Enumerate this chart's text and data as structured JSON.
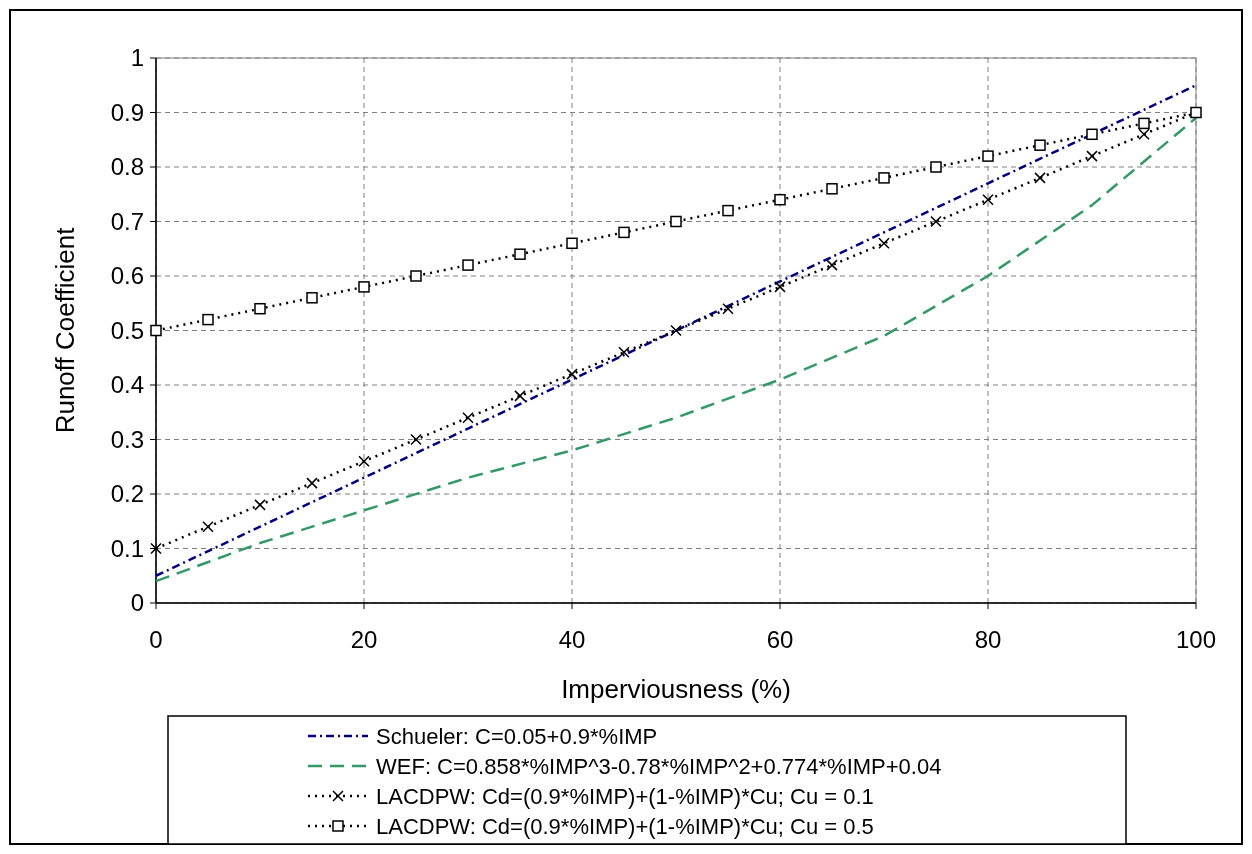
{
  "chart_data": {
    "type": "line",
    "xlabel": "Imperviousness (%)",
    "ylabel": "Runoff Coefficient",
    "xlim": [
      0,
      100
    ],
    "xticks": [
      0,
      20,
      40,
      60,
      80,
      100
    ],
    "ylim": [
      0,
      1
    ],
    "yticks": [
      0,
      0.1,
      0.2,
      0.3,
      0.4,
      0.5,
      0.6,
      0.7,
      0.8,
      0.9,
      1
    ],
    "grid": true,
    "legend": "bottom",
    "series": [
      {
        "name": "Schueler: C=0.05+0.9*%IMP",
        "color": "#000080",
        "line_style": "dashdot",
        "marker": "none",
        "x": [
          0,
          10,
          20,
          30,
          40,
          50,
          60,
          70,
          80,
          90,
          100
        ],
        "values": [
          0.05,
          0.14,
          0.23,
          0.32,
          0.41,
          0.5,
          0.59,
          0.68,
          0.77,
          0.86,
          0.95
        ]
      },
      {
        "name": "WEF: C=0.858*%IMP^3-0.78*%IMP^2+0.774*%IMP+0.04",
        "color": "#339966",
        "line_style": "dashed",
        "marker": "none",
        "x": [
          0,
          10,
          20,
          30,
          40,
          50,
          60,
          70,
          80,
          90,
          100
        ],
        "values": [
          0.04,
          0.11,
          0.17,
          0.23,
          0.28,
          0.34,
          0.41,
          0.49,
          0.6,
          0.73,
          0.89
        ]
      },
      {
        "name": "LACDPW:  Cd=(0.9*%IMP)+(1-%IMP)*Cu; Cu = 0.1",
        "color": "#000000",
        "line_style": "dotted",
        "marker": "cross",
        "x": [
          0,
          5,
          10,
          15,
          20,
          25,
          30,
          35,
          40,
          45,
          50,
          55,
          60,
          65,
          70,
          75,
          80,
          85,
          90,
          95,
          100
        ],
        "values": [
          0.1,
          0.14,
          0.18,
          0.22,
          0.26,
          0.3,
          0.34,
          0.38,
          0.42,
          0.46,
          0.5,
          0.54,
          0.58,
          0.62,
          0.66,
          0.7,
          0.74,
          0.78,
          0.82,
          0.86,
          0.9
        ]
      },
      {
        "name": "LACDPW:  Cd=(0.9*%IMP)+(1-%IMP)*Cu; Cu = 0.5",
        "color": "#000000",
        "line_style": "dotted",
        "marker": "square",
        "x": [
          0,
          5,
          10,
          15,
          20,
          25,
          30,
          35,
          40,
          45,
          50,
          55,
          60,
          65,
          70,
          75,
          80,
          85,
          90,
          95,
          100
        ],
        "values": [
          0.5,
          0.52,
          0.54,
          0.56,
          0.58,
          0.6,
          0.62,
          0.64,
          0.66,
          0.68,
          0.7,
          0.72,
          0.74,
          0.76,
          0.78,
          0.8,
          0.82,
          0.84,
          0.86,
          0.88,
          0.9
        ]
      }
    ]
  }
}
